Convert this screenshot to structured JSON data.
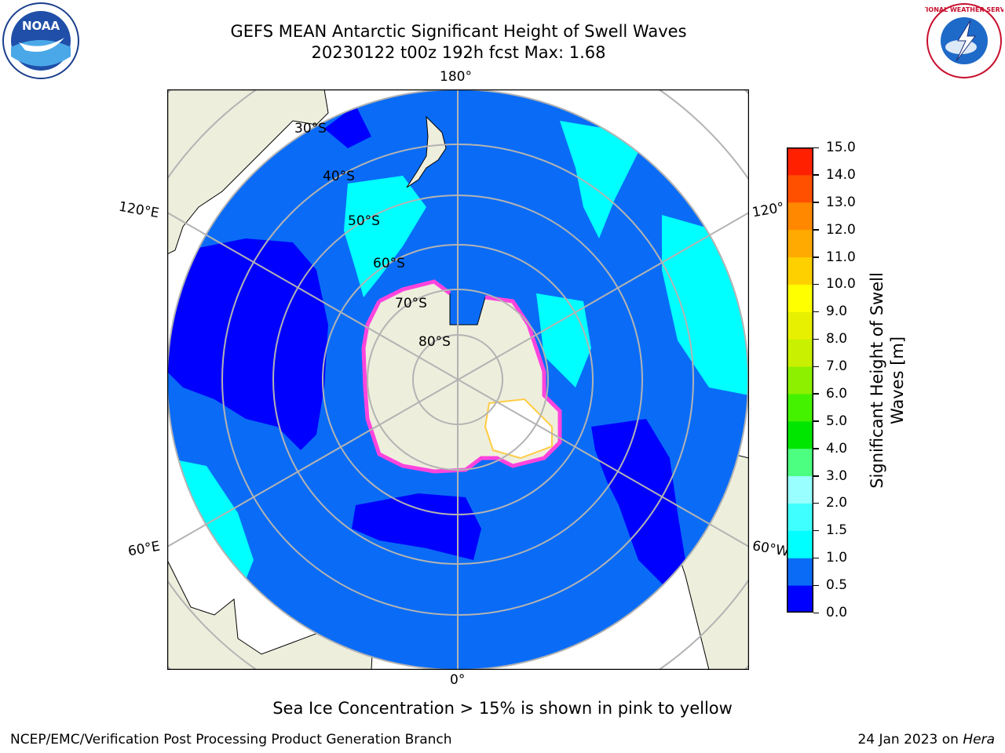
{
  "title_line1": "GEFS MEAN Antarctic Significant Height of Swell Waves",
  "title_line2": "20230122 t00z 192h fcst   Max: 1.68",
  "lon_labels": {
    "top": "180°",
    "bottom": "0°",
    "left_upper": "120°E",
    "left_lower": "60°E",
    "right_upper": "120°",
    "right_lower": "60°W"
  },
  "lat_labels": [
    "30°S",
    "40°S",
    "50°S",
    "60°S",
    "70°S",
    "80°S"
  ],
  "colorbar": {
    "title_line1": "Significant Height of Swell",
    "title_line2": "Waves [m]",
    "ticks": [
      "0.0",
      "0.5",
      "1.0",
      "1.5",
      "2.0",
      "3.0",
      "4.0",
      "5.0",
      "6.0",
      "7.0",
      "8.0",
      "9.0",
      "10.0",
      "11.0",
      "12.0",
      "13.0",
      "14.0",
      "15.0"
    ],
    "colors": [
      "#0000ff",
      "#0a6cf6",
      "#00ffff",
      "#40ffff",
      "#99ffff",
      "#4dff80",
      "#00e600",
      "#44f200",
      "#8cf000",
      "#c8f000",
      "#e6f000",
      "#ffff00",
      "#ffd000",
      "#ffaa00",
      "#ff8800",
      "#ff5000",
      "#ff2000"
    ]
  },
  "logos": {
    "left": "NOAA",
    "right": "NATIONAL WEATHER SERVICE"
  },
  "footer": {
    "note": "Sea Ice Concentration > 15% is shown in pink to yellow",
    "left": "NCEP/EMC/Verification Post Processing Product Generation Branch",
    "right_prefix": "24 Jan 2023 on ",
    "right_host": "Hera"
  }
}
